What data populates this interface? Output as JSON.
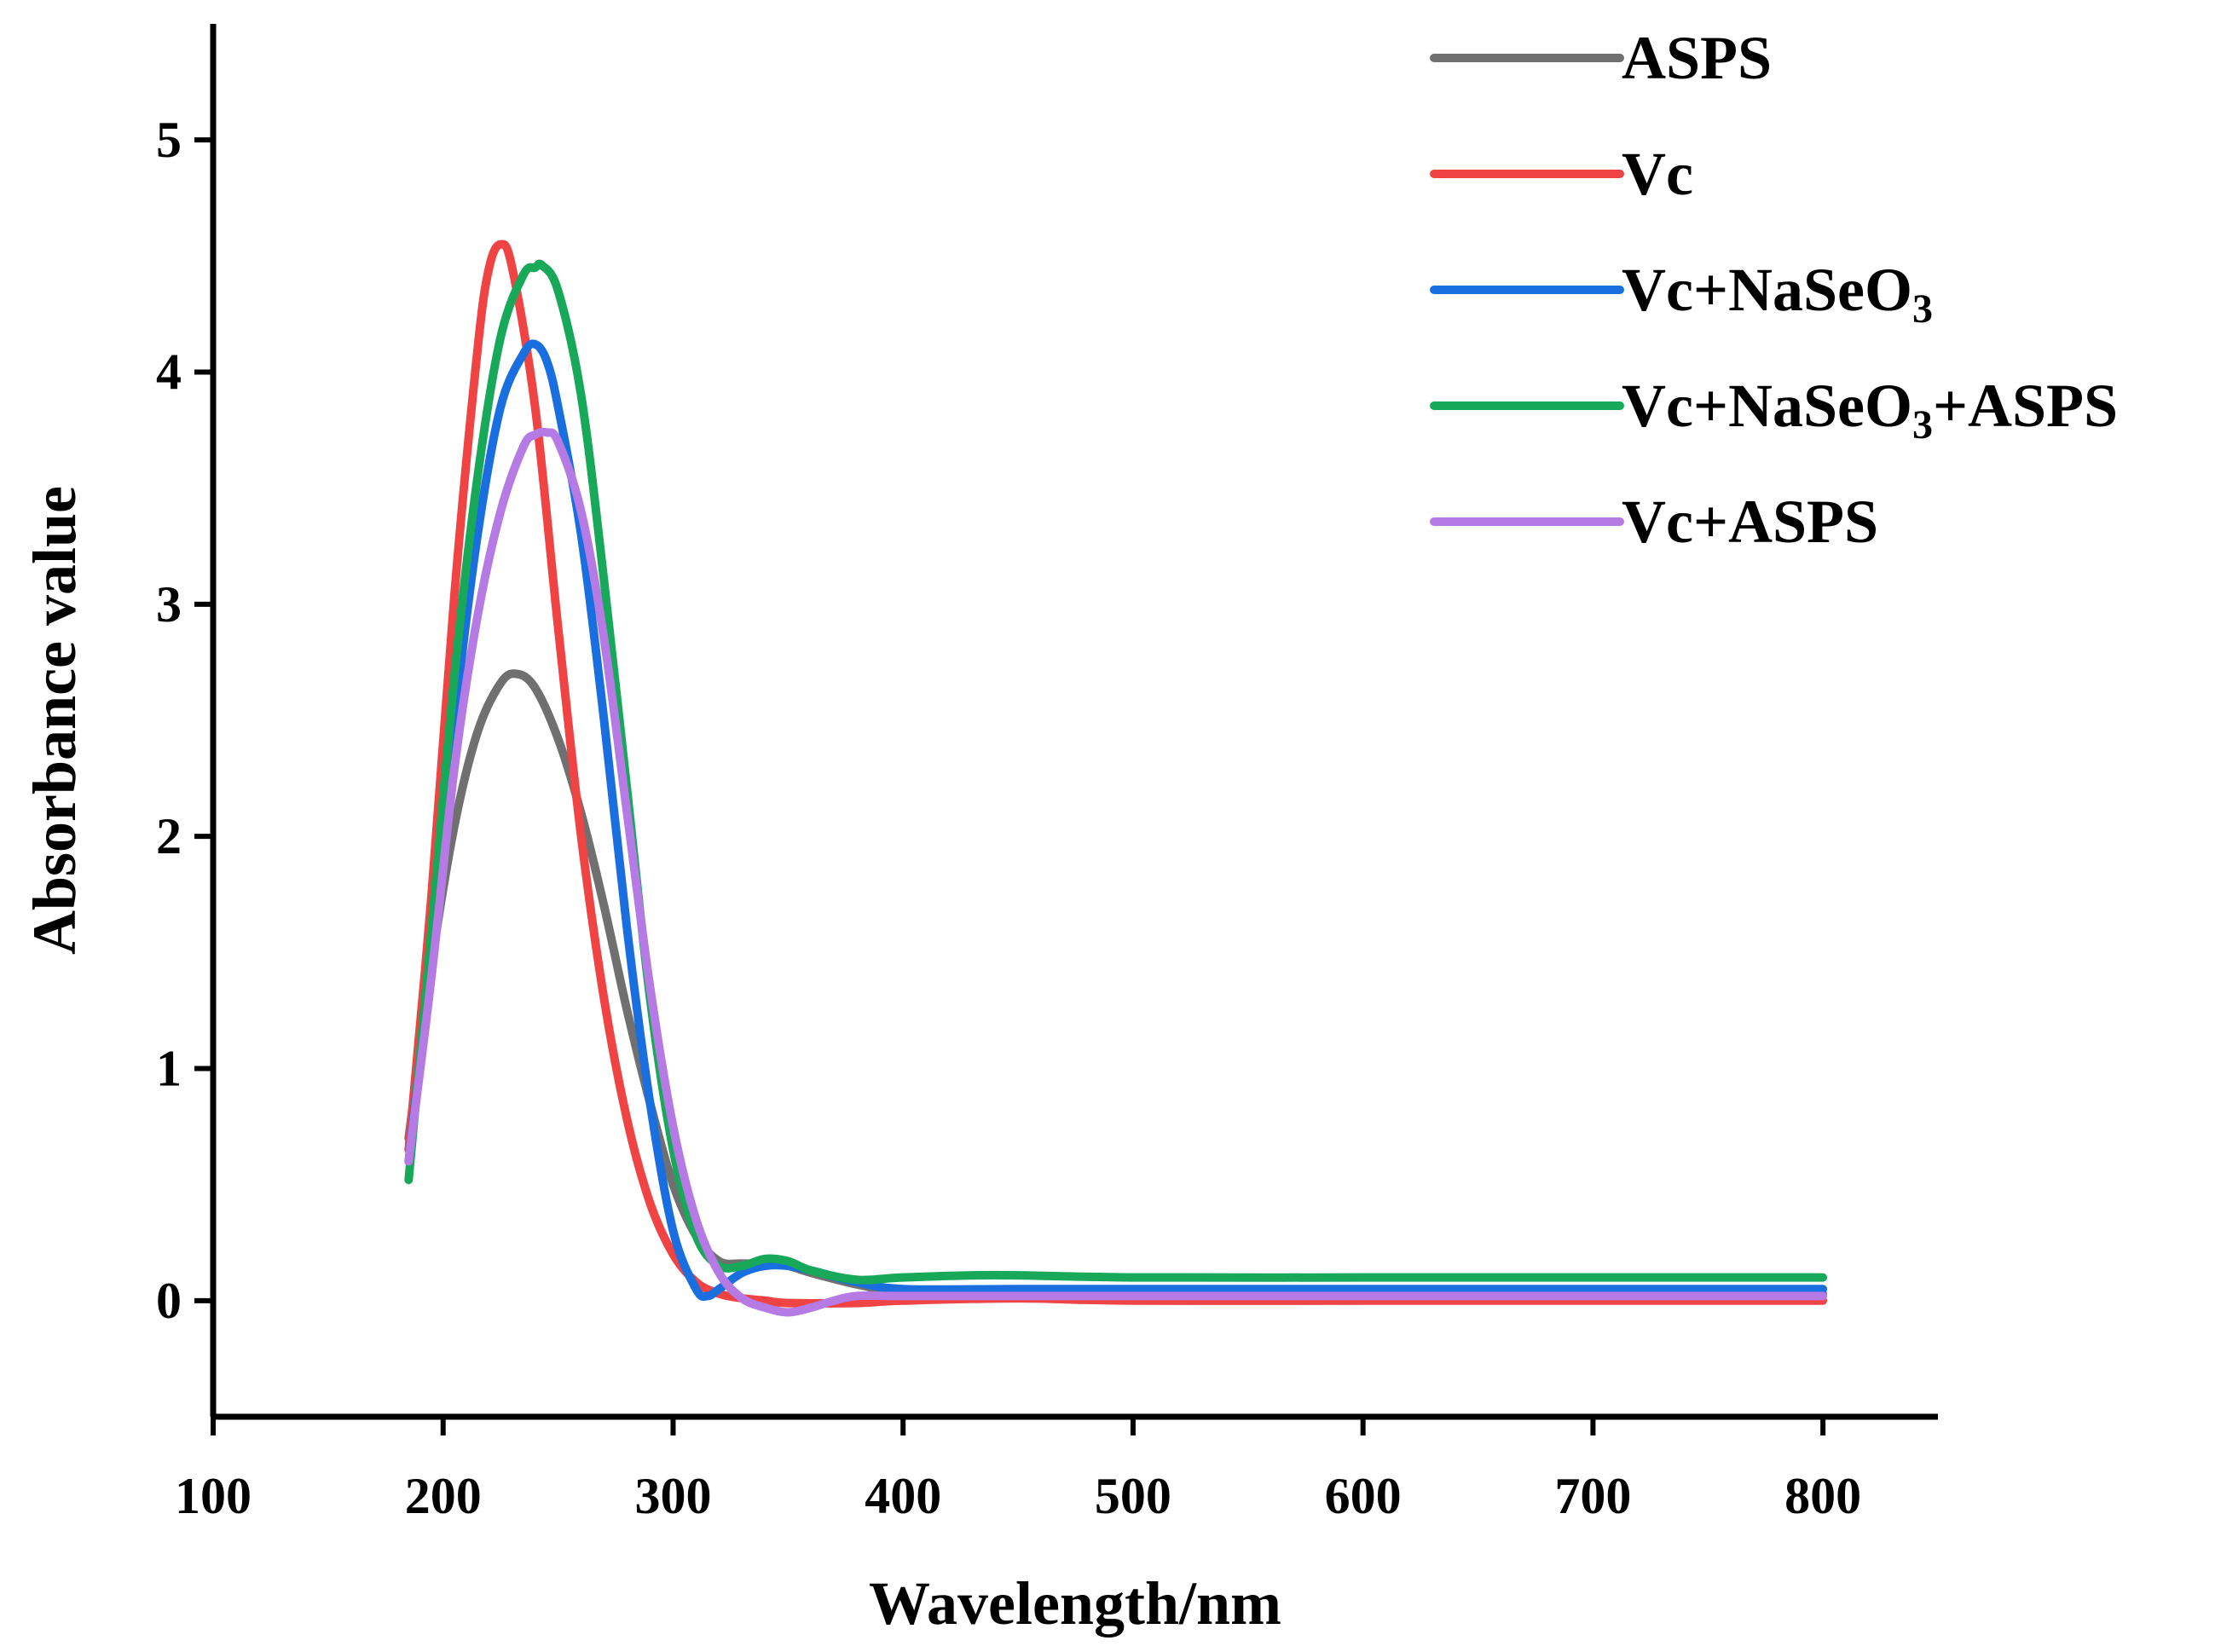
{
  "chart_data": {
    "type": "line",
    "title": "",
    "xlabel": "Wavelength/nm",
    "ylabel": "Absorbance value",
    "xlim": [
      100,
      850
    ],
    "ylim": [
      -0.5,
      5.5
    ],
    "xticks": [
      100,
      200,
      300,
      400,
      500,
      600,
      700,
      800
    ],
    "yticks": [
      0,
      1,
      2,
      3,
      4,
      5
    ],
    "grid": false,
    "legend_position": "top-right",
    "series": [
      {
        "name": "ASPS",
        "legend_parts": [
          {
            "text": "ASPS",
            "sub": ""
          }
        ],
        "color": "#707070",
        "x": [
          185,
          195,
          205,
          215,
          225,
          232,
          240,
          250,
          260,
          270,
          280,
          290,
          300,
          310,
          320,
          330,
          340,
          350,
          360,
          380,
          400,
          450,
          500,
          600,
          700,
          800
        ],
        "y": [
          0.7,
          1.45,
          2.05,
          2.45,
          2.66,
          2.7,
          2.64,
          2.42,
          2.1,
          1.7,
          1.25,
          0.85,
          0.5,
          0.28,
          0.17,
          0.16,
          0.16,
          0.15,
          0.12,
          0.07,
          0.04,
          0.03,
          0.03,
          0.03,
          0.03,
          0.03
        ]
      },
      {
        "name": "Vc",
        "legend_parts": [
          {
            "text": "Vc",
            "sub": ""
          }
        ],
        "color": "#f04343",
        "x": [
          185,
          195,
          205,
          215,
          220,
          225,
          230,
          240,
          250,
          260,
          270,
          280,
          290,
          300,
          310,
          320,
          330,
          340,
          350,
          380,
          400,
          450,
          500,
          600,
          700,
          800
        ],
        "y": [
          0.65,
          1.75,
          3.05,
          4.1,
          4.45,
          4.55,
          4.45,
          3.85,
          2.9,
          2.0,
          1.3,
          0.78,
          0.42,
          0.2,
          0.08,
          0.03,
          0.01,
          0.0,
          -0.01,
          -0.01,
          0.0,
          0.01,
          0.0,
          0.0,
          0.0,
          0.0
        ]
      },
      {
        "name": "Vc+NaSeO3",
        "legend_parts": [
          {
            "text": "Vc+NaSeO",
            "sub": ""
          },
          {
            "text": "3",
            "sub": "sub"
          }
        ],
        "color": "#1a6fe0",
        "x": [
          185,
          195,
          205,
          215,
          225,
          235,
          240,
          245,
          250,
          260,
          270,
          280,
          290,
          300,
          310,
          315,
          320,
          330,
          340,
          350,
          360,
          380,
          400,
          450,
          500,
          600,
          700,
          800
        ],
        "y": [
          0.6,
          1.5,
          2.5,
          3.3,
          3.85,
          4.08,
          4.12,
          4.05,
          3.85,
          3.3,
          2.5,
          1.6,
          0.85,
          0.3,
          0.05,
          0.02,
          0.05,
          0.12,
          0.15,
          0.15,
          0.13,
          0.08,
          0.05,
          0.05,
          0.05,
          0.05,
          0.05,
          0.05
        ]
      },
      {
        "name": "Vc+NaSeO3+ASPS",
        "legend_parts": [
          {
            "text": "Vc+NaSeO",
            "sub": ""
          },
          {
            "text": "3",
            "sub": "sub"
          },
          {
            "text": "+ASPS",
            "sub": ""
          }
        ],
        "color": "#17a85a",
        "x": [
          185,
          195,
          205,
          215,
          225,
          235,
          240,
          243,
          250,
          260,
          270,
          280,
          290,
          300,
          310,
          320,
          330,
          340,
          350,
          360,
          380,
          400,
          440,
          500,
          600,
          700,
          800
        ],
        "y": [
          0.52,
          1.6,
          2.7,
          3.55,
          4.15,
          4.42,
          4.45,
          4.46,
          4.35,
          3.9,
          3.1,
          2.2,
          1.3,
          0.65,
          0.28,
          0.15,
          0.15,
          0.18,
          0.17,
          0.13,
          0.09,
          0.1,
          0.11,
          0.1,
          0.1,
          0.1,
          0.1
        ]
      },
      {
        "name": "Vc+ASPS",
        "legend_parts": [
          {
            "text": "Vc+ASPS",
            "sub": ""
          }
        ],
        "color": "#b57ae3",
        "x": [
          185,
          195,
          205,
          215,
          225,
          235,
          240,
          245,
          250,
          260,
          270,
          280,
          290,
          300,
          310,
          320,
          330,
          340,
          350,
          360,
          370,
          380,
          400,
          450,
          500,
          600,
          700,
          800
        ],
        "y": [
          0.6,
          1.4,
          2.3,
          2.95,
          3.4,
          3.68,
          3.73,
          3.74,
          3.7,
          3.4,
          2.85,
          2.1,
          1.35,
          0.75,
          0.35,
          0.12,
          0.01,
          -0.03,
          -0.05,
          -0.03,
          0.0,
          0.02,
          0.02,
          0.02,
          0.02,
          0.02,
          0.02,
          0.02
        ]
      }
    ]
  }
}
